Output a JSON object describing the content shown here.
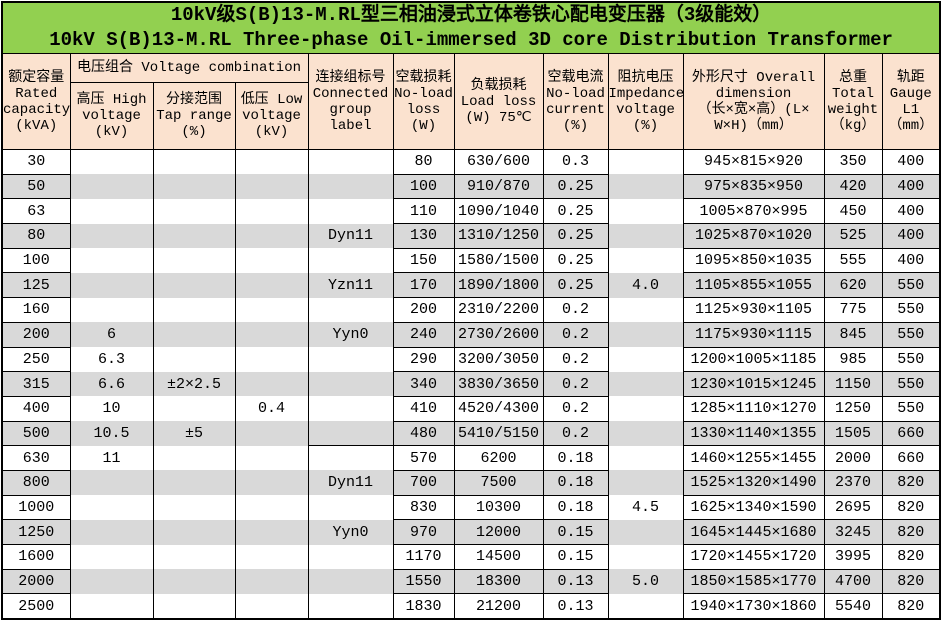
{
  "title": {
    "line1": "10kV级S(B)13-M.RL型三相油浸式立体卷铁心配电变压器（3级能效）",
    "line2": "10kV S(B)13-M.RL Three-phase Oil-immersed 3D core Distribution Transformer"
  },
  "colors": {
    "title_bg": "#92D050",
    "header_bg": "#FBE2CF",
    "stripe_bg": "#D9D9D9",
    "border": "#000000"
  },
  "header": {
    "capacity": "额定容量\nRated\ncapacity\n(kVA)",
    "voltage_combination": "电压组合 Voltage combination",
    "hv": "高压 High\nvoltage\n(kV)",
    "tap": "分接范围\nTap range\n(%)",
    "lv": "低压 Low\nvoltage\n(kV)",
    "group": "连接组标号\nConnected\ngroup\nlabel",
    "no_load_loss": "空载损耗\nNo-load\nloss\n(W)",
    "load_loss": "负载损耗\nLoad loss\n(W) 75℃",
    "no_load_current": "空载电流\nNo-load\ncurrent\n(%)",
    "impedance": "阻抗电压\nImpedance\nvoltage\n(%)",
    "dimension": "外形尺寸 Overall\ndimension\n（长×宽×高）(L×\nW×H)（mm）",
    "weight": "总重\nTotal\nweight\n（kg）",
    "gauge": "轨距\nGauge\nL1\n（mm）"
  },
  "rows": [
    {
      "capacity": "30",
      "hv": "",
      "tap": "",
      "lv": "",
      "group": "",
      "no_load_loss": "80",
      "load_loss": "630/600",
      "no_load_current": "0.3",
      "impedance": "",
      "dimension": "945×815×920",
      "weight": "350",
      "gauge": "400"
    },
    {
      "capacity": "50",
      "hv": "",
      "tap": "",
      "lv": "",
      "group": "",
      "no_load_loss": "100",
      "load_loss": "910/870",
      "no_load_current": "0.25",
      "impedance": "",
      "dimension": "975×835×950",
      "weight": "420",
      "gauge": "400"
    },
    {
      "capacity": "63",
      "hv": "",
      "tap": "",
      "lv": "",
      "group": "",
      "no_load_loss": "110",
      "load_loss": "1090/1040",
      "no_load_current": "0.25",
      "impedance": "",
      "dimension": "1005×870×995",
      "weight": "450",
      "gauge": "400"
    },
    {
      "capacity": "80",
      "hv": "",
      "tap": "",
      "lv": "",
      "group": "Dyn11",
      "no_load_loss": "130",
      "load_loss": "1310/1250",
      "no_load_current": "0.25",
      "impedance": "",
      "dimension": "1025×870×1020",
      "weight": "525",
      "gauge": "400"
    },
    {
      "capacity": "100",
      "hv": "",
      "tap": "",
      "lv": "",
      "group": "",
      "no_load_loss": "150",
      "load_loss": "1580/1500",
      "no_load_current": "0.25",
      "impedance": "",
      "dimension": "1095×850×1035",
      "weight": "555",
      "gauge": "400"
    },
    {
      "capacity": "125",
      "hv": "",
      "tap": "",
      "lv": "",
      "group": "Yzn11",
      "no_load_loss": "170",
      "load_loss": "1890/1800",
      "no_load_current": "0.25",
      "impedance": "4.0",
      "dimension": "1105×855×1055",
      "weight": "620",
      "gauge": "550"
    },
    {
      "capacity": "160",
      "hv": "",
      "tap": "",
      "lv": "",
      "group": "",
      "no_load_loss": "200",
      "load_loss": "2310/2200",
      "no_load_current": "0.2",
      "impedance": "",
      "dimension": "1125×930×1105",
      "weight": "775",
      "gauge": "550"
    },
    {
      "capacity": "200",
      "hv": "6",
      "tap": "",
      "lv": "",
      "group": "Yyn0",
      "no_load_loss": "240",
      "load_loss": "2730/2600",
      "no_load_current": "0.2",
      "impedance": "",
      "dimension": "1175×930×1115",
      "weight": "845",
      "gauge": "550"
    },
    {
      "capacity": "250",
      "hv": "6.3",
      "tap": "",
      "lv": "",
      "group": "",
      "no_load_loss": "290",
      "load_loss": "3200/3050",
      "no_load_current": "0.2",
      "impedance": "",
      "dimension": "1200×1005×1185",
      "weight": "985",
      "gauge": "550"
    },
    {
      "capacity": "315",
      "hv": "6.6",
      "tap": "±2×2.5",
      "lv": "",
      "group": "",
      "no_load_loss": "340",
      "load_loss": "3830/3650",
      "no_load_current": "0.2",
      "impedance": "",
      "dimension": "1230×1015×1245",
      "weight": "1150",
      "gauge": "550"
    },
    {
      "capacity": "400",
      "hv": "10",
      "tap": "",
      "lv": "0.4",
      "group": "",
      "no_load_loss": "410",
      "load_loss": "4520/4300",
      "no_load_current": "0.2",
      "impedance": "",
      "dimension": "1285×1110×1270",
      "weight": "1250",
      "gauge": "550"
    },
    {
      "capacity": "500",
      "hv": "10.5",
      "tap": "±5",
      "lv": "",
      "group": "",
      "no_load_loss": "480",
      "load_loss": "5410/5150",
      "no_load_current": "0.2",
      "impedance": "",
      "dimension": "1330×1140×1355",
      "weight": "1505",
      "gauge": "660"
    },
    {
      "capacity": "630",
      "hv": "11",
      "tap": "",
      "lv": "",
      "group": "",
      "no_load_loss": "570",
      "load_loss": "6200",
      "no_load_current": "0.18",
      "impedance": "",
      "dimension": "1460×1255×1455",
      "weight": "2000",
      "gauge": "660"
    },
    {
      "capacity": "800",
      "hv": "",
      "tap": "",
      "lv": "",
      "group": "Dyn11",
      "no_load_loss": "700",
      "load_loss": "7500",
      "no_load_current": "0.18",
      "impedance": "",
      "dimension": "1525×1320×1490",
      "weight": "2370",
      "gauge": "820"
    },
    {
      "capacity": "1000",
      "hv": "",
      "tap": "",
      "lv": "",
      "group": "",
      "no_load_loss": "830",
      "load_loss": "10300",
      "no_load_current": "0.18",
      "impedance": "4.5",
      "dimension": "1625×1340×1590",
      "weight": "2695",
      "gauge": "820"
    },
    {
      "capacity": "1250",
      "hv": "",
      "tap": "",
      "lv": "",
      "group": "Yyn0",
      "no_load_loss": "970",
      "load_loss": "12000",
      "no_load_current": "0.15",
      "impedance": "",
      "dimension": "1645×1445×1680",
      "weight": "3245",
      "gauge": "820"
    },
    {
      "capacity": "1600",
      "hv": "",
      "tap": "",
      "lv": "",
      "group": "",
      "no_load_loss": "1170",
      "load_loss": "14500",
      "no_load_current": "0.15",
      "impedance": "",
      "dimension": "1720×1455×1720",
      "weight": "3995",
      "gauge": "820"
    },
    {
      "capacity": "2000",
      "hv": "",
      "tap": "",
      "lv": "",
      "group": "",
      "no_load_loss": "1550",
      "load_loss": "18300",
      "no_load_current": "0.13",
      "impedance": "5.0",
      "dimension": "1850×1585×1770",
      "weight": "4700",
      "gauge": "820"
    },
    {
      "capacity": "2500",
      "hv": "",
      "tap": "",
      "lv": "",
      "group": "",
      "no_load_loss": "1830",
      "load_loss": "21200",
      "no_load_current": "0.13",
      "impedance": "",
      "dimension": "1940×1730×1860",
      "weight": "5540",
      "gauge": "820"
    }
  ]
}
